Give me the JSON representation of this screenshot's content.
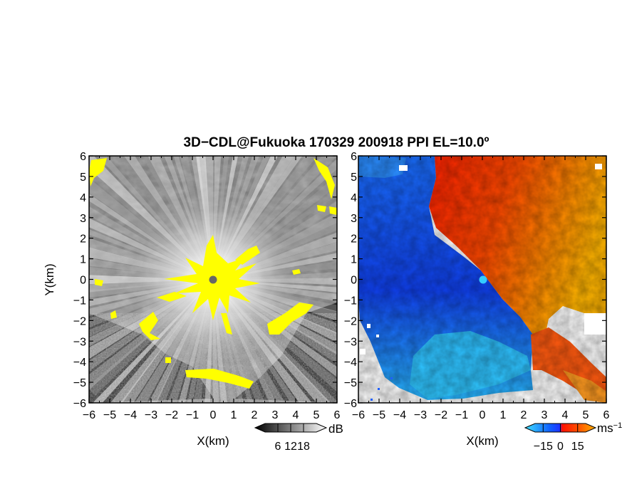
{
  "figure": {
    "title": "3D−CDL@Fukuoka 170329 200918 PPI EL=10.0º"
  },
  "chart_data": [
    {
      "type": "heatmap",
      "name": "",
      "xlabel": "X(km)",
      "ylabel": "Y(km)",
      "xlim": [
        -6,
        6
      ],
      "ylim": [
        -6,
        6
      ],
      "xticks": [
        -6,
        -5,
        -4,
        -3,
        -2,
        -1,
        0,
        1,
        2,
        3,
        4,
        5,
        6
      ],
      "yticks": [
        -6,
        -5,
        -4,
        -3,
        -2,
        -1,
        0,
        1,
        2,
        3,
        4,
        5,
        6
      ],
      "xtick_labels": [
        "−6",
        "−5",
        "−4",
        "−3",
        "−2",
        "−1",
        "0",
        "1",
        "2",
        "3",
        "4",
        "5",
        "6"
      ],
      "ytick_labels": [
        "−6",
        "−5",
        "−4",
        "−3",
        "−2",
        "−1",
        "0",
        "1",
        "2",
        "3",
        "4",
        "5",
        "6"
      ],
      "colormap": "grayscale",
      "overflow_color": "#ffff00",
      "colorbar": {
        "ticks": [
          6,
          12,
          18
        ],
        "tick_labels": [
          "6",
          "12",
          "18"
        ],
        "unit": "dB"
      },
      "marker": {
        "x": 0,
        "y": 0,
        "color": "#666666"
      }
    },
    {
      "type": "heatmap",
      "name": "",
      "xlabel": "X(km)",
      "ylabel": "",
      "xlim": [
        -6,
        6
      ],
      "ylim": [
        -6,
        6
      ],
      "xticks": [
        -6,
        -5,
        -4,
        -3,
        -2,
        -1,
        0,
        1,
        2,
        3,
        4,
        5,
        6
      ],
      "yticks": [
        -6,
        -5,
        -4,
        -3,
        -2,
        -1,
        0,
        1,
        2,
        3,
        4,
        5,
        6
      ],
      "xtick_labels": [
        "−6",
        "−5",
        "−4",
        "−3",
        "−2",
        "−1",
        "0",
        "1",
        "2",
        "3",
        "4",
        "5",
        "6"
      ],
      "ytick_labels": [
        "−6",
        "−5",
        "−4",
        "−3",
        "−2",
        "−1",
        "0",
        "1",
        "2",
        "3",
        "4",
        "5",
        "6"
      ],
      "colormap": "diverging blue-red",
      "colorbar": {
        "ticks": [
          -15,
          0,
          15
        ],
        "tick_labels": [
          "−15",
          "0",
          "15"
        ],
        "unit": "ms",
        "unit_exponent": "−1"
      },
      "marker": {
        "x": 0,
        "y": 0,
        "color": "#33ccff"
      }
    }
  ]
}
